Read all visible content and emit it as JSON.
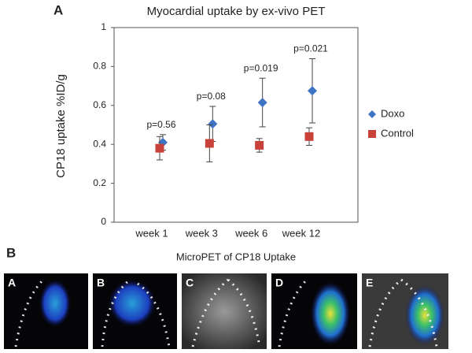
{
  "panel_labels": [
    "A",
    "B"
  ],
  "chart_data": {
    "type": "scatter",
    "title": "Myocardial uptake by ex-vivo PET",
    "y_label": "CP18 uptake %ID/g",
    "categories": [
      "week 1",
      "week 3",
      "week 6",
      "week 12"
    ],
    "series": [
      {
        "name": "Doxo",
        "color": "#3f74c4",
        "marker": "diamond",
        "values": [
          0.41,
          0.505,
          0.615,
          0.675
        ],
        "errors": [
          0.04,
          0.09,
          0.125,
          0.165
        ]
      },
      {
        "name": "Control",
        "color": "#c8423a",
        "marker": "square",
        "values": [
          0.38,
          0.405,
          0.395,
          0.44
        ],
        "errors": [
          0.06,
          0.095,
          0.035,
          0.045
        ]
      }
    ],
    "annotations": [
      "p=0.56",
      "p=0.08",
      "p=0.019",
      "p=0.021"
    ],
    "ylim": [
      0,
      1
    ],
    "yticks": [
      0,
      0.2,
      0.4,
      0.6,
      0.8,
      1
    ],
    "legend": "right"
  },
  "panel_b": {
    "title": "MicroPET of CP18 Uptake",
    "images": [
      "A",
      "B",
      "C",
      "D",
      "E"
    ]
  }
}
